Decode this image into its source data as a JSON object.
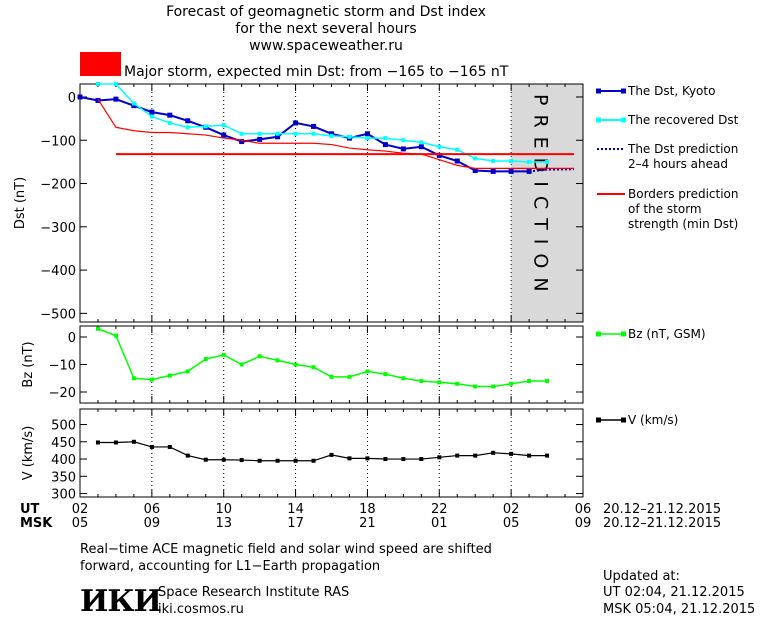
{
  "header": {
    "title_line1": "Forecast of geomagnetic storm and Dst index",
    "title_line2": "for the next several hours",
    "title_line3": "www.spaceweather.ru",
    "storm_text": "Major storm, expected min Dst: from −165 to −165 nT",
    "storm_color": "#ff0000"
  },
  "colors": {
    "dst_kyoto": "#0000cc",
    "recovered": "#00ffff",
    "borders": "#ff0000",
    "bz": "#00ff00",
    "v": "#000000",
    "prediction_band": "#d9d9d9"
  },
  "chart_data": [
    {
      "type": "line",
      "ylabel": "Dst (nT)",
      "ylim": [
        -520,
        30
      ],
      "yticks": [
        "0",
        "−100",
        "−200",
        "−300",
        "−400",
        "−500"
      ],
      "prediction_label": "PREDICTION",
      "legend": [
        "The Dst, Kyoto",
        "The recovered Dst",
        "The Dst prediction",
        "2–4 hours ahead",
        "Borders prediction",
        "of the storm",
        "strength (min Dst)"
      ],
      "series": [
        {
          "name": "The Dst, Kyoto",
          "x": [
            2,
            3,
            4,
            5,
            6,
            7,
            8,
            9,
            10,
            11,
            12,
            13,
            14,
            15,
            16,
            17,
            18,
            19,
            20,
            21,
            22,
            23,
            24,
            25,
            26,
            27
          ],
          "values": [
            0,
            -8,
            -5,
            -20,
            -35,
            -42,
            -55,
            -70,
            -88,
            -103,
            -98,
            -92,
            -60,
            -68,
            -85,
            -95,
            -85,
            -110,
            -120,
            -115,
            -135,
            -148,
            -170,
            -172,
            -172,
            -172
          ]
        },
        {
          "name": "The recovered Dst",
          "x": [
            3,
            4,
            5,
            6,
            7,
            8,
            9,
            10,
            11,
            12,
            13,
            14,
            15,
            16,
            17,
            18,
            19,
            20,
            21,
            22,
            23,
            24,
            25,
            26,
            27,
            28
          ],
          "values": [
            30,
            30,
            -15,
            -45,
            -60,
            -70,
            -68,
            -65,
            -85,
            -85,
            -85,
            -85,
            -85,
            -90,
            -92,
            -95,
            -95,
            -100,
            -105,
            -115,
            -122,
            -142,
            -148,
            -148,
            -150,
            -150
          ]
        },
        {
          "name": "The Dst prediction 2–4 hours ahead",
          "x": [
            27,
            28,
            29.5
          ],
          "values": [
            -172,
            -168,
            -167
          ]
        },
        {
          "name": "Borders prediction of the storm strength (min Dst)",
          "x": [
            3,
            4,
            5,
            6,
            7,
            8,
            9,
            10,
            11,
            12,
            13,
            14,
            15,
            16,
            17,
            18,
            19,
            20,
            21,
            22,
            23,
            24,
            25,
            26,
            27,
            28,
            29.5
          ],
          "values": [
            -5,
            -70,
            -78,
            -82,
            -82,
            -85,
            -88,
            -95,
            -100,
            -107,
            -107,
            -107,
            -107,
            -110,
            -118,
            -122,
            -125,
            -130,
            -132,
            -145,
            -158,
            -165,
            -165,
            -165,
            -165,
            -165,
            -165
          ]
        },
        {
          "name": "Borders prediction (lower)",
          "x": [
            4,
            29.5
          ],
          "values": [
            -132,
            -132
          ]
        }
      ]
    },
    {
      "type": "line",
      "ylabel": "Bz (nT)",
      "ylim": [
        -24,
        4
      ],
      "yticks": [
        "0",
        "−10",
        "−20"
      ],
      "legend": [
        "Bz (nT, GSM)"
      ],
      "series": [
        {
          "name": "Bz (nT, GSM)",
          "x": [
            3,
            4,
            5,
            6,
            7,
            8,
            9,
            10,
            11,
            12,
            13,
            14,
            15,
            16,
            17,
            18,
            19,
            20,
            21,
            22,
            23,
            24,
            25,
            26,
            27,
            28
          ],
          "values": [
            3,
            0.5,
            -15,
            -15.5,
            -14,
            -12.5,
            -8,
            -6.5,
            -10,
            -7,
            -8.5,
            -10,
            -11,
            -14.5,
            -14.5,
            -12.5,
            -13.5,
            -15,
            -16,
            -16.5,
            -17,
            -18,
            -18,
            -17,
            -16,
            -16
          ]
        }
      ]
    },
    {
      "type": "line",
      "ylabel": "V (km/s)",
      "ylim": [
        290,
        545
      ],
      "yticks": [
        "500",
        "450",
        "400",
        "350",
        "300"
      ],
      "legend": [
        "V (km/s)"
      ],
      "series": [
        {
          "name": "V (km/s)",
          "x": [
            3,
            4,
            5,
            6,
            7,
            8,
            9,
            10,
            11,
            12,
            13,
            14,
            15,
            16,
            17,
            18,
            19,
            20,
            21,
            22,
            23,
            24,
            25,
            26,
            27,
            28
          ],
          "values": [
            448,
            448,
            450,
            435,
            435,
            410,
            398,
            398,
            397,
            395,
            395,
            395,
            395,
            412,
            402,
            402,
            400,
            400,
            400,
            405,
            410,
            410,
            418,
            415,
            410,
            410
          ]
        }
      ]
    }
  ],
  "x_axis": {
    "ut_label": "UT",
    "msk_label": "MSK",
    "ut_ticks": [
      "02",
      "06",
      "10",
      "14",
      "18",
      "22",
      "02",
      "06"
    ],
    "msk_ticks": [
      "05",
      "09",
      "13",
      "17",
      "21",
      "01",
      "05",
      "09"
    ],
    "ut_range": "20.12–21.12.2015",
    "msk_range": "20.12–21.12.2015"
  },
  "footer": {
    "note_line1": "Real−time ACE magnetic field and solar wind speed are shifted",
    "note_line2": "forward, accounting for L1−Earth propagation",
    "institute": "Space Research Institute RAS",
    "site": "iki.cosmos.ru",
    "logo_text": "ИКИ",
    "updated_label": "Updated at:",
    "updated_ut": "UT   02:04, 21.12.2015",
    "updated_msk": "MSK 05:04, 21.12.2015"
  }
}
